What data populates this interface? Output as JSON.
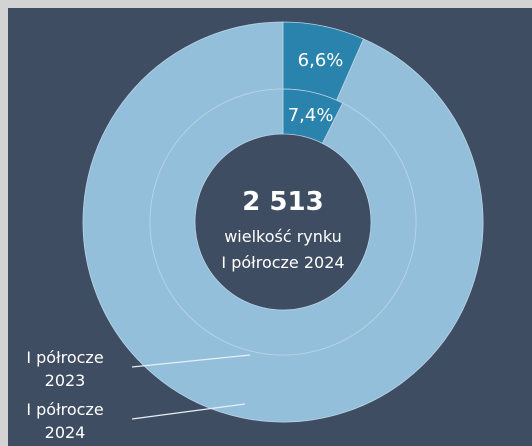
{
  "chart_data": {
    "type": "nested-donut",
    "center_value": {
      "value": 2513,
      "label": "2 513"
    },
    "center_text": [
      "wielkość rynku",
      "I półrocze 2024"
    ],
    "series": [
      {
        "name": "I półrocze 2024",
        "ring": "outer",
        "values": [
          6.6,
          93.4
        ],
        "value_labels": [
          "6,6%",
          null
        ],
        "colors": [
          "#2a83ad",
          "#94bfdb"
        ]
      },
      {
        "name": "I półrocze 2023",
        "ring": "inner",
        "values": [
          7.4,
          92.6
        ],
        "value_labels": [
          "7,4%",
          null
        ],
        "colors": [
          "#2a83ad",
          "#94bfdb"
        ]
      }
    ]
  }
}
